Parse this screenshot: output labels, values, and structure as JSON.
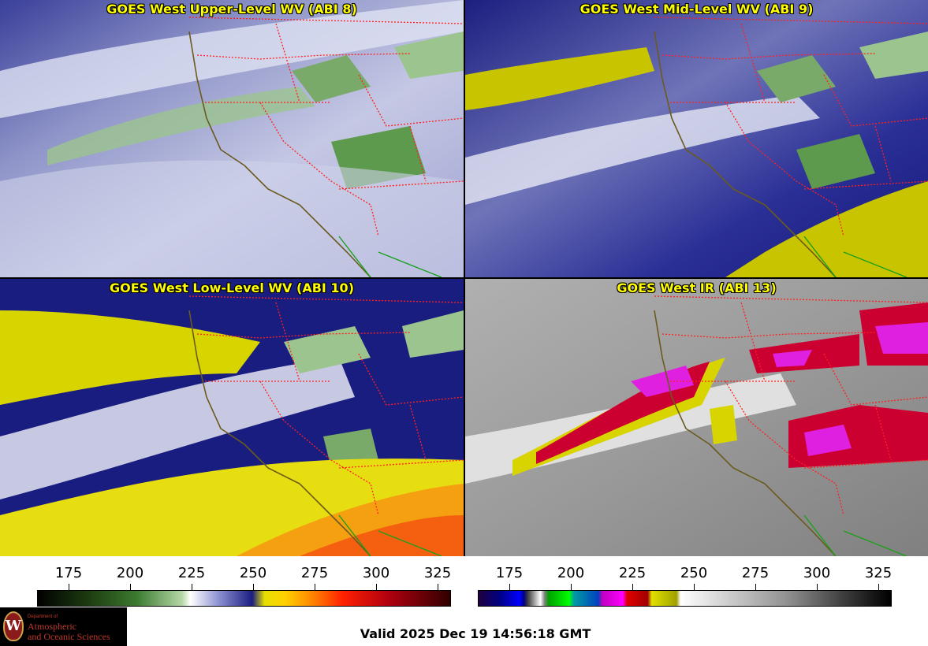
{
  "panels": [
    {
      "title": "GOES West Upper-Level WV (ABI 8)",
      "palette": "wv"
    },
    {
      "title": "GOES West Mid-Level WV (ABI 9)",
      "palette": "wv"
    },
    {
      "title": "GOES West Low-Level WV (ABI 10)",
      "palette": "wv"
    },
    {
      "title": "GOES West IR (ABI 13)",
      "palette": "ir"
    }
  ],
  "colorbars": {
    "wv_ticks": [
      "175",
      "200",
      "225",
      "250",
      "275",
      "300",
      "325"
    ],
    "ir_ticks": [
      "175",
      "200",
      "225",
      "250",
      "275",
      "300",
      "325"
    ]
  },
  "footer": {
    "valid_time": "Valid 2025 Dec 19 14:56:18 GMT",
    "logo_dept": "Department of",
    "logo_line1": "Atmospheric",
    "logo_line2": "and Oceanic Sciences",
    "logo_seal": "W"
  },
  "colors": {
    "coastline": "#6b5a1e",
    "state_border": "#ff2020",
    "mexico_border": "#1aa01a",
    "title_text": "#ffff00"
  }
}
